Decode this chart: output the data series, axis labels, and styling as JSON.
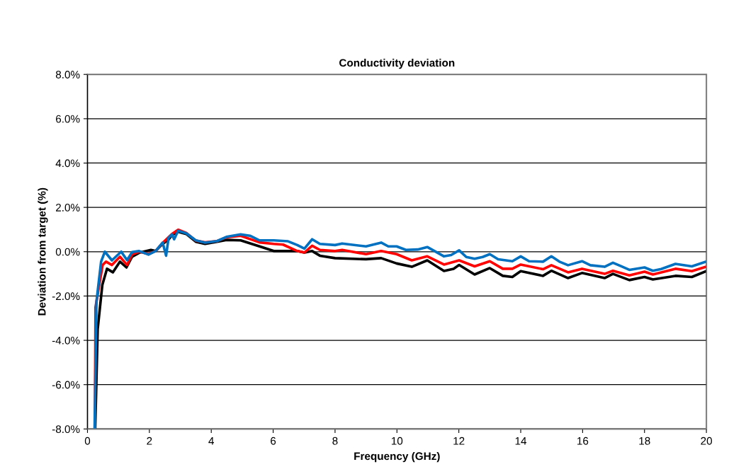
{
  "chart_data": {
    "type": "line",
    "title": "Conductivity deviation",
    "xlabel": "Frequency (GHz)",
    "ylabel": "Deviation from target (%)",
    "xlim": [
      0,
      20
    ],
    "xticks": [
      0,
      2,
      4,
      6,
      8,
      10,
      12,
      14,
      16,
      18,
      20
    ],
    "ylim": [
      -8,
      8
    ],
    "yticks": [
      {
        "value": -8,
        "label": "-8.0%"
      },
      {
        "value": -6,
        "label": "-6.0%"
      },
      {
        "value": -4,
        "label": "-4.0%"
      },
      {
        "value": -2,
        "label": "-2.0%"
      },
      {
        "value": 0,
        "label": "0.0%"
      },
      {
        "value": 2,
        "label": "2.0%"
      },
      {
        "value": 4,
        "label": "4.0%"
      },
      {
        "value": 6,
        "label": "6.0%"
      },
      {
        "value": 8,
        "label": "8.0%"
      }
    ],
    "grid": "y",
    "marker": "none",
    "line_style": "solid",
    "series": [
      {
        "color": "#000000",
        "x": [
          0.25,
          0.33,
          0.48,
          0.63,
          0.82,
          1.05,
          1.26,
          1.44,
          1.67,
          2.05,
          2.2,
          2.43,
          2.62,
          2.73,
          2.93,
          3.19,
          3.5,
          3.8,
          4.19,
          4.49,
          4.95,
          5.56,
          6.02,
          6.78,
          7.01,
          7.26,
          7.51,
          8.0,
          9.0,
          9.49,
          9.99,
          10.48,
          10.98,
          11.52,
          11.83,
          12.01,
          12.51,
          13.0,
          13.42,
          13.73,
          14.0,
          14.72,
          14.99,
          15.53,
          15.98,
          16.71,
          16.98,
          17.51,
          18.0,
          18.27,
          19.0,
          19.53,
          19.99
        ],
        "values": [
          -8,
          -3.5,
          -1.5,
          -0.77,
          -0.93,
          -0.45,
          -0.71,
          -0.23,
          -0.05,
          0.08,
          0.03,
          0.35,
          0.55,
          0.75,
          0.9,
          0.8,
          0.45,
          0.35,
          0.45,
          0.53,
          0.51,
          0.24,
          0.03,
          0.03,
          -0.04,
          0.03,
          -0.18,
          -0.29,
          -0.34,
          -0.29,
          -0.53,
          -0.68,
          -0.39,
          -0.87,
          -0.77,
          -0.6,
          -1.03,
          -0.74,
          -1.09,
          -1.14,
          -0.88,
          -1.09,
          -0.86,
          -1.19,
          -0.96,
          -1.19,
          -1.0,
          -1.28,
          -1.14,
          -1.25,
          -1.09,
          -1.14,
          -0.88
        ]
      },
      {
        "color": "#ff0000",
        "x": [
          0.24,
          0.26,
          0.49,
          0.6,
          0.79,
          1.05,
          1.28,
          1.44,
          1.67,
          1.97,
          2.2,
          2.43,
          2.62,
          2.73,
          2.93,
          3.19,
          3.5,
          3.8,
          4.19,
          4.49,
          4.95,
          5.56,
          6.02,
          6.32,
          6.78,
          7.01,
          7.26,
          7.51,
          8.0,
          8.23,
          9.0,
          9.49,
          9.99,
          10.48,
          10.98,
          11.52,
          12.01,
          12.51,
          13.0,
          13.42,
          13.73,
          14.0,
          14.72,
          14.99,
          15.53,
          15.98,
          16.71,
          16.98,
          17.51,
          18.0,
          18.27,
          19.0,
          19.53,
          19.99
        ],
        "values": [
          -8,
          -2.5,
          -0.6,
          -0.45,
          -0.6,
          -0.23,
          -0.6,
          -0.13,
          0.0,
          -0.1,
          0.03,
          0.4,
          0.65,
          0.8,
          0.99,
          0.85,
          0.5,
          0.42,
          0.48,
          0.65,
          0.72,
          0.42,
          0.35,
          0.32,
          0.03,
          -0.04,
          0.27,
          0.08,
          0.03,
          0.08,
          -0.11,
          0.03,
          -0.11,
          -0.39,
          -0.21,
          -0.58,
          -0.39,
          -0.66,
          -0.43,
          -0.77,
          -0.77,
          -0.58,
          -0.79,
          -0.61,
          -0.93,
          -0.77,
          -1.0,
          -0.86,
          -1.07,
          -0.9,
          -1.03,
          -0.77,
          -0.88,
          -0.68
        ]
      },
      {
        "color": "#0070c0",
        "x": [
          0.23,
          0.29,
          0.44,
          0.56,
          0.79,
          1.09,
          1.28,
          1.44,
          1.67,
          1.97,
          2.2,
          2.43,
          2.54,
          2.62,
          2.73,
          2.8,
          2.93,
          3.19,
          3.5,
          3.8,
          4.19,
          4.49,
          4.95,
          5.25,
          5.56,
          6.02,
          6.48,
          6.78,
          7.01,
          7.26,
          7.51,
          8.0,
          8.23,
          9.0,
          9.49,
          9.72,
          9.99,
          10.29,
          10.67,
          10.98,
          11.52,
          11.75,
          12.01,
          12.24,
          12.51,
          12.77,
          13.0,
          13.27,
          13.73,
          14.0,
          14.27,
          14.72,
          14.99,
          15.25,
          15.53,
          15.98,
          16.25,
          16.71,
          16.98,
          17.25,
          17.51,
          18.0,
          18.27,
          18.54,
          19.0,
          19.53,
          19.99
        ],
        "values": [
          -8,
          -2.26,
          -0.45,
          0.0,
          -0.39,
          0.0,
          -0.38,
          -0.02,
          0.03,
          -0.13,
          0.03,
          0.41,
          -0.18,
          0.62,
          0.78,
          0.56,
          0.94,
          0.83,
          0.51,
          0.41,
          0.48,
          0.67,
          0.78,
          0.72,
          0.51,
          0.51,
          0.47,
          0.3,
          0.14,
          0.56,
          0.35,
          0.3,
          0.37,
          0.24,
          0.41,
          0.24,
          0.24,
          0.08,
          0.1,
          0.21,
          -0.21,
          -0.15,
          0.06,
          -0.24,
          -0.32,
          -0.24,
          -0.11,
          -0.34,
          -0.43,
          -0.21,
          -0.43,
          -0.45,
          -0.21,
          -0.45,
          -0.61,
          -0.43,
          -0.61,
          -0.68,
          -0.5,
          -0.66,
          -0.82,
          -0.71,
          -0.86,
          -0.78,
          -0.55,
          -0.66,
          -0.45
        ]
      }
    ]
  }
}
